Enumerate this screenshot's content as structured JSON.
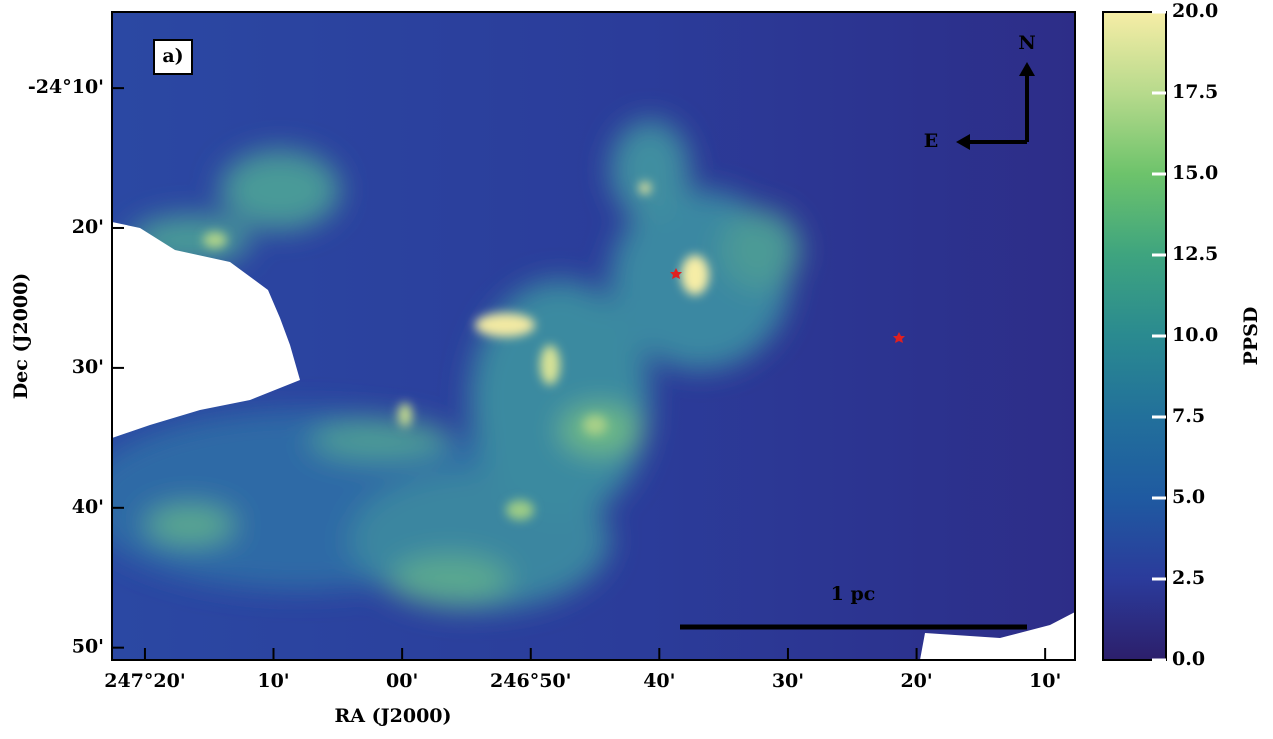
{
  "chart_data": {
    "type": "image",
    "panel_label": "a)",
    "xlabel": "RA (J2000)",
    "ylabel": "Dec (J2000)",
    "xlim": [
      247.376,
      246.128
    ],
    "xticks": [
      {
        "value": 247.3333,
        "label": "247°20'"
      },
      {
        "value": 247.1667,
        "label": "10'"
      },
      {
        "value": 247.0,
        "label": "00'"
      },
      {
        "value": 246.8333,
        "label": "246°50'"
      },
      {
        "value": 246.6667,
        "label": "40'"
      },
      {
        "value": 246.5,
        "label": "30'"
      },
      {
        "value": 246.3333,
        "label": "20'"
      },
      {
        "value": 246.1667,
        "label": "10'"
      }
    ],
    "ylim": [
      -24.848,
      -24.076
    ],
    "yticks": [
      {
        "value": -24.1667,
        "label": "-24°10'"
      },
      {
        "value": -24.3333,
        "label": "20'"
      },
      {
        "value": -24.5,
        "label": "30'"
      },
      {
        "value": -24.6667,
        "label": "40'"
      },
      {
        "value": -24.8333,
        "label": "50'"
      }
    ],
    "colorbar_label": "PPSD",
    "clim": [
      0,
      20
    ],
    "cticks": [
      {
        "value": 0,
        "label": "0.0"
      },
      2.5,
      {
        "value": 5,
        "label": "5.0"
      },
      7.5,
      {
        "value": 10,
        "label": "10.0"
      },
      12.5,
      {
        "value": 15,
        "label": "15.0"
      },
      17.5,
      {
        "value": 20,
        "label": "20.0"
      }
    ],
    "colormap": [
      "#2c1f6b",
      "#2b3b9b",
      "#1f5aa1",
      "#22709b",
      "#2a8a90",
      "#3ea47f",
      "#6dc36b",
      "#b7da8c",
      "#f6eda6"
    ],
    "north_label": "N",
    "east_label": "E",
    "scalebar_label": "1 pc"
  }
}
